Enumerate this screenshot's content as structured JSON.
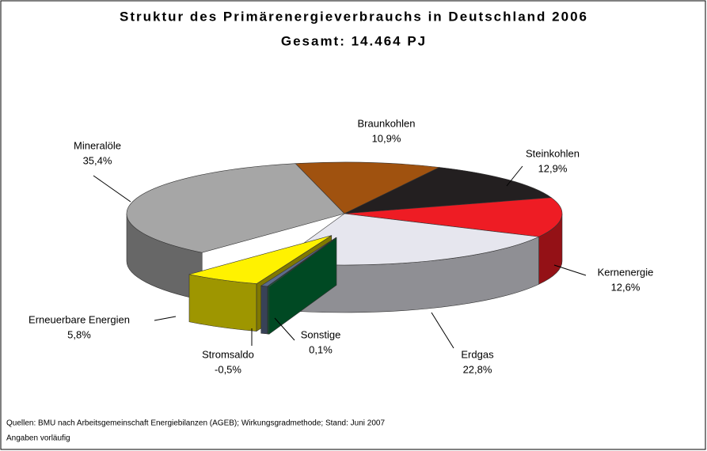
{
  "chart_data": {
    "type": "pie",
    "title": "Struktur des Primärenergieverbrauchs in Deutschland 2006",
    "subtitle": "Gesamt: 14.464 PJ",
    "categories": [
      "Braunkohlen",
      "Steinkohlen",
      "Kernenergie",
      "Erdgas",
      "Sonstige",
      "Stromsaldo",
      "Erneuerbare Energien",
      "Mineralöle"
    ],
    "values": [
      10.9,
      12.9,
      12.6,
      22.8,
      0.1,
      -0.5,
      5.8,
      35.4
    ],
    "value_labels": [
      "10,9%",
      "12,9%",
      "12,6%",
      "22,8%",
      "0,1%",
      "-0,5%",
      "5,8%",
      "35,4%"
    ],
    "colors": [
      "#a0520f",
      "#231f20",
      "#ee1c24",
      "#e6e6ee",
      "#009245",
      "#5b6b8c",
      "#fff200",
      "#a6a6a6"
    ],
    "source": [
      "Quellen: BMU nach Arbeitsgemeinschaft Energiebilanzen (AGEB); Wirkungsgradmethode; Stand: Juni 2007",
      "Angaben vorläufig"
    ]
  }
}
